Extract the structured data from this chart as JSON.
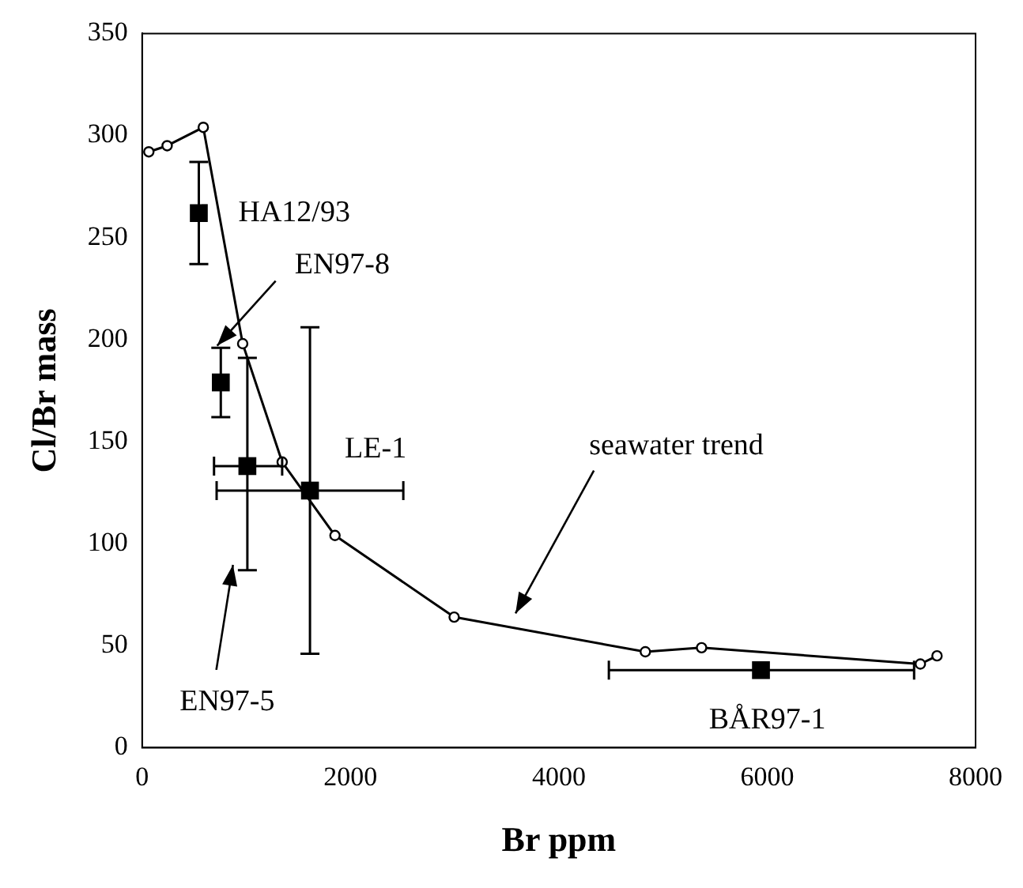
{
  "chart_data": {
    "type": "scatter",
    "xlabel": "Br ppm",
    "ylabel": "Cl/Br mass",
    "xlim": [
      0,
      8000
    ],
    "xticks": [
      0,
      2000,
      4000,
      6000,
      8000
    ],
    "ylim": [
      0,
      350
    ],
    "yticks": [
      0,
      50,
      100,
      150,
      200,
      250,
      300,
      350
    ],
    "grid": false,
    "legend": false,
    "series": [
      {
        "type": "line",
        "marker": "circle",
        "line_style": "solid",
        "color": "#000000",
        "x": [
          64,
          240,
          587,
          965,
          1344,
          1851,
          2995,
          4830,
          5370,
          7470,
          7630
        ],
        "values": [
          292,
          295,
          304,
          198,
          140,
          104,
          64,
          47,
          49,
          41,
          45
        ]
      },
      {
        "marker": "square",
        "color": "#000000",
        "x": [
          544
        ],
        "values": [
          262
        ],
        "errors": [
          [
            237,
            287
          ]
        ]
      },
      {
        "marker": "square",
        "color": "#000000",
        "x": [
          755
        ],
        "values": [
          179
        ],
        "errors": [
          [
            162,
            196
          ]
        ]
      },
      {
        "marker": "square",
        "color": "#000000",
        "x": [
          1010
        ],
        "values": [
          138
        ],
        "errors": [
          [
            87,
            191
          ]
        ],
        "xerrors": [
          [
            690,
            1344
          ]
        ]
      },
      {
        "marker": "square",
        "color": "#000000",
        "x": [
          1611
        ],
        "values": [
          126
        ],
        "errors": [
          [
            46,
            206
          ]
        ],
        "xerrors": [
          [
            715,
            2507
          ]
        ]
      },
      {
        "marker": "square",
        "color": "#000000",
        "x": [
          5940
        ],
        "values": [
          38
        ],
        "xerrors": [
          [
            4480,
            7410
          ]
        ]
      }
    ],
    "annotations": [
      {
        "text": "HA12/93",
        "x": 544,
        "y": 262
      },
      {
        "text": "EN97-8",
        "x": 720,
        "y": 197
      },
      "EN97-5",
      {
        "text": "LE-1",
        "x": 1611,
        "y": 126
      },
      "seawater trend",
      {
        "text": "BÅR97-1",
        "x": 5940,
        "y": 38
      }
    ]
  }
}
